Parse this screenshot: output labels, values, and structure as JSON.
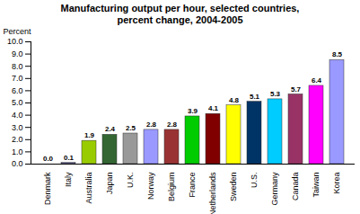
{
  "chart_data": {
    "type": "bar",
    "title": "Manufacturing output per hour, selected countries,\npercent change, 2004-2005",
    "y_label": "Percent",
    "categories": [
      "Denmark",
      "Italy",
      "Australia",
      "Japan",
      "U.K.",
      "Norway",
      "Belgium",
      "France",
      "Netherlands",
      "Sweden",
      "U.S.",
      "Germany",
      "Canada",
      "Taiwan",
      "Korea"
    ],
    "values": [
      0.0,
      0.1,
      1.9,
      2.4,
      2.5,
      2.8,
      2.8,
      3.9,
      4.1,
      4.8,
      5.1,
      5.3,
      5.7,
      6.4,
      8.5
    ],
    "value_labels": [
      "0.0",
      "0.1",
      "1.9",
      "2.4",
      "2.5",
      "2.8",
      "2.8",
      "3.9",
      "4.1",
      "4.8",
      "5.1",
      "5.3",
      "5.7",
      "6.4",
      "8.5"
    ],
    "colors": [
      "#999999",
      "#666699",
      "#99cc00",
      "#336633",
      "#999999",
      "#9999ff",
      "#993333",
      "#00cc00",
      "#800000",
      "#ffff00",
      "#003366",
      "#00ccff",
      "#993366",
      "#ff00ff",
      "#9999ff"
    ],
    "ylim": [
      0,
      10
    ],
    "yticks": [
      {
        "value": 0,
        "label": "0.0"
      },
      {
        "value": 1,
        "label": "1.0"
      },
      {
        "value": 2,
        "label": "2.0"
      },
      {
        "value": 3,
        "label": "3.0"
      },
      {
        "value": 4,
        "label": "4.0"
      },
      {
        "value": 5,
        "label": "5.0"
      },
      {
        "value": 6,
        "label": "6.0"
      },
      {
        "value": 7,
        "label": "7.0"
      },
      {
        "value": 8,
        "label": "8.0"
      },
      {
        "value": 9,
        "label": "9.0"
      },
      {
        "value": 10,
        "label": "10.0"
      }
    ],
    "grid": false,
    "data_labels": true
  }
}
